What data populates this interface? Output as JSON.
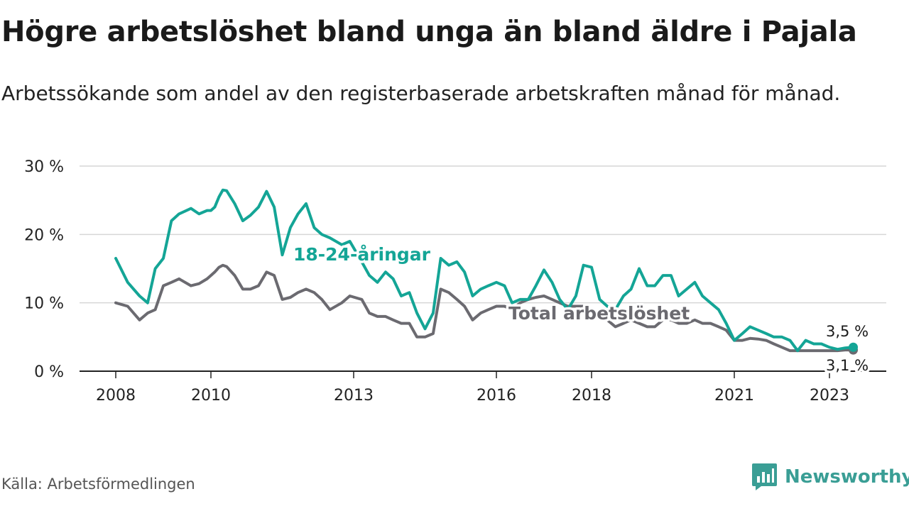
{
  "title": "Högre arbetslöshet bland unga än bland äldre i Pajala",
  "subtitle": "Arbetssökande som andel av den registerbaserade arbetskraften månad för månad.",
  "source": "Källa: Arbetsförmedlingen",
  "brand": "Newsworthy",
  "colors": {
    "youth": "#14a596",
    "total": "#6b6a70",
    "grid": "#d6d6d6",
    "axis": "#222222",
    "brand": "#3a9e95"
  },
  "chart_data": {
    "type": "line",
    "title": "Högre arbetslöshet bland unga än bland äldre i Pajala",
    "ylabel": "",
    "xlabel": "",
    "ylim": [
      0,
      30
    ],
    "xlim": [
      2007.3,
      2024.7
    ],
    "y_ticks": [
      0,
      10,
      20,
      30
    ],
    "y_tick_labels": [
      "0 %",
      "10 %",
      "20 %",
      "30 %"
    ],
    "x_ticks": [
      2008,
      2010,
      2013,
      2016,
      2018,
      2021,
      2023
    ],
    "x_tick_labels": [
      "2008",
      "2010",
      "2013",
      "2016",
      "2018",
      "2021",
      "2023"
    ],
    "grid": true,
    "series": [
      {
        "name": "18-24-åringar",
        "label": "18-24-åringar",
        "end_label": "3,5 %",
        "x": [
          2008.0,
          2008.25,
          2008.5,
          2008.67,
          2008.83,
          2009.0,
          2009.17,
          2009.33,
          2009.58,
          2009.75,
          2009.92,
          2010.0,
          2010.08,
          2010.17,
          2010.25,
          2010.33,
          2010.5,
          2010.67,
          2010.83,
          2011.0,
          2011.17,
          2011.33,
          2011.5,
          2011.67,
          2011.83,
          2012.0,
          2012.17,
          2012.33,
          2012.5,
          2012.75,
          2012.92,
          2013.17,
          2013.33,
          2013.5,
          2013.67,
          2013.83,
          2014.0,
          2014.17,
          2014.33,
          2014.5,
          2014.67,
          2014.83,
          2015.0,
          2015.17,
          2015.33,
          2015.5,
          2015.67,
          2015.83,
          2016.0,
          2016.17,
          2016.33,
          2016.5,
          2016.67,
          2016.83,
          2017.0,
          2017.17,
          2017.33,
          2017.5,
          2017.67,
          2017.83,
          2018.0,
          2018.17,
          2018.33,
          2018.5,
          2018.67,
          2018.83,
          2019.0,
          2019.17,
          2019.33,
          2019.5,
          2019.67,
          2019.83,
          2020.0,
          2020.17,
          2020.33,
          2020.5,
          2020.67,
          2020.83,
          2021.0,
          2021.17,
          2021.33,
          2021.5,
          2021.67,
          2021.83,
          2022.0,
          2022.17,
          2022.33,
          2022.5,
          2022.67,
          2022.83,
          2023.0,
          2023.17,
          2023.33,
          2023.5
        ],
        "values": [
          16.5,
          13.0,
          11.0,
          10.0,
          15.0,
          16.5,
          22.0,
          23.0,
          23.8,
          23.0,
          23.5,
          23.5,
          24.0,
          25.5,
          26.5,
          26.4,
          24.5,
          22.0,
          22.8,
          24.0,
          26.3,
          24.0,
          17.0,
          21.0,
          23.0,
          24.5,
          21.0,
          20.0,
          19.5,
          18.5,
          19.0,
          16.0,
          14.0,
          13.0,
          14.5,
          13.5,
          11.0,
          11.5,
          8.5,
          6.2,
          8.5,
          16.5,
          15.5,
          16.0,
          14.5,
          11.0,
          12.0,
          12.5,
          13.0,
          12.5,
          10.0,
          10.5,
          10.5,
          12.5,
          14.8,
          13.0,
          10.5,
          9.0,
          11.0,
          15.5,
          15.2,
          10.5,
          9.5,
          9.0,
          11.0,
          12.0,
          15.0,
          12.5,
          12.5,
          14.0,
          14.0,
          11.0,
          12.0,
          13.0,
          11.0,
          10.0,
          9.0,
          7.0,
          4.5,
          5.5,
          6.5,
          6.0,
          5.5,
          5.0,
          5.0,
          4.5,
          3.0,
          4.5,
          4.0,
          4.0,
          3.5,
          3.2,
          3.4,
          3.5
        ]
      },
      {
        "name": "Total arbetslöshet",
        "label": "Total arbetslöshet",
        "end_label": "3,1 %",
        "x": [
          2008.0,
          2008.25,
          2008.5,
          2008.67,
          2008.83,
          2009.0,
          2009.17,
          2009.33,
          2009.58,
          2009.75,
          2009.92,
          2010.0,
          2010.08,
          2010.17,
          2010.25,
          2010.33,
          2010.5,
          2010.67,
          2010.83,
          2011.0,
          2011.17,
          2011.33,
          2011.5,
          2011.67,
          2011.83,
          2012.0,
          2012.17,
          2012.33,
          2012.5,
          2012.75,
          2012.92,
          2013.17,
          2013.33,
          2013.5,
          2013.67,
          2013.83,
          2014.0,
          2014.17,
          2014.33,
          2014.5,
          2014.67,
          2014.83,
          2015.0,
          2015.17,
          2015.33,
          2015.5,
          2015.67,
          2015.83,
          2016.0,
          2016.17,
          2016.33,
          2016.5,
          2016.67,
          2016.83,
          2017.0,
          2017.17,
          2017.33,
          2017.5,
          2017.67,
          2017.83,
          2018.0,
          2018.17,
          2018.33,
          2018.5,
          2018.67,
          2018.83,
          2019.0,
          2019.17,
          2019.33,
          2019.5,
          2019.67,
          2019.83,
          2020.0,
          2020.17,
          2020.33,
          2020.5,
          2020.67,
          2020.83,
          2021.0,
          2021.17,
          2021.33,
          2021.5,
          2021.67,
          2021.83,
          2022.0,
          2022.17,
          2022.33,
          2022.5,
          2022.67,
          2022.83,
          2023.0,
          2023.17,
          2023.33,
          2023.5
        ],
        "values": [
          10.0,
          9.5,
          7.5,
          8.5,
          9.0,
          12.5,
          13.0,
          13.5,
          12.5,
          12.8,
          13.5,
          14.0,
          14.5,
          15.2,
          15.5,
          15.3,
          14.0,
          12.0,
          12.0,
          12.5,
          14.5,
          14.0,
          10.5,
          10.8,
          11.5,
          12.0,
          11.5,
          10.5,
          9.0,
          10.0,
          11.0,
          10.5,
          8.5,
          8.0,
          8.0,
          7.5,
          7.0,
          7.0,
          5.0,
          5.0,
          5.5,
          12.0,
          11.5,
          10.5,
          9.5,
          7.5,
          8.5,
          9.0,
          9.5,
          9.5,
          9.0,
          10.0,
          10.5,
          10.8,
          11.0,
          10.5,
          10.0,
          9.5,
          9.5,
          9.5,
          9.0,
          8.5,
          7.5,
          6.5,
          7.0,
          7.5,
          7.0,
          6.5,
          6.5,
          7.5,
          7.5,
          7.0,
          7.0,
          7.5,
          7.0,
          7.0,
          6.5,
          6.0,
          4.5,
          4.5,
          4.8,
          4.7,
          4.5,
          4.0,
          3.5,
          3.0,
          3.0,
          3.0,
          3.0,
          3.0,
          3.0,
          3.0,
          3.1,
          3.1
        ]
      }
    ]
  }
}
